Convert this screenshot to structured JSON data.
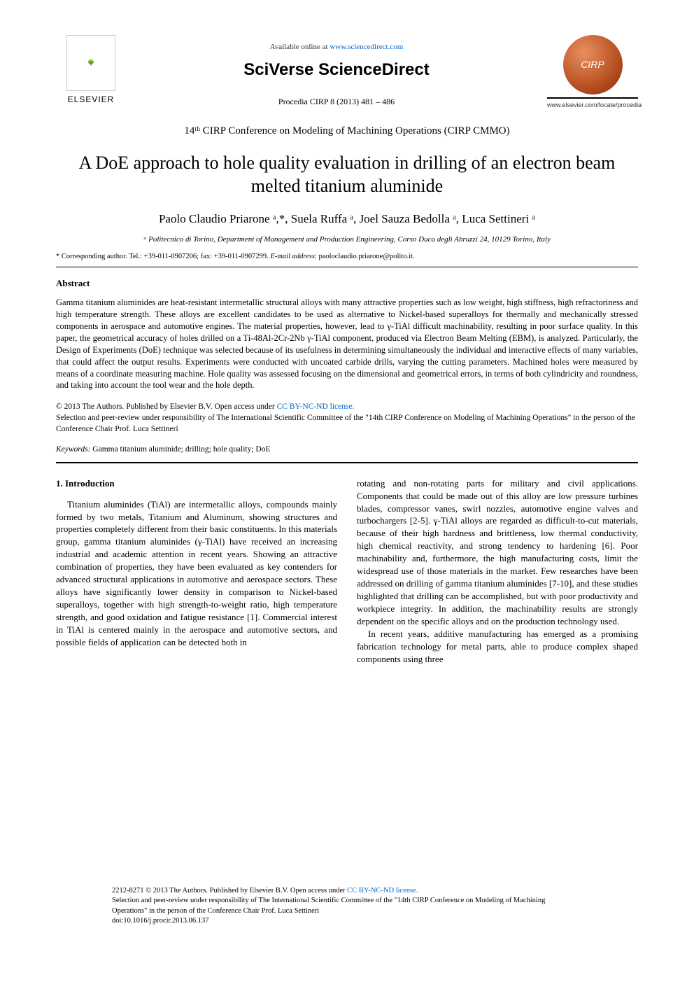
{
  "header": {
    "available_online": "Available online at ",
    "sciencedirect_url": "www.sciencedirect.com",
    "sciverse": "SciVerse ScienceDirect",
    "procedia": "Procedia CIRP 8 (2013) 481 – 486",
    "elsevier_label": "ELSEVIER",
    "cirp_label": "CIRP",
    "elsevier_url": "www.elsevier.com/locate/procedia"
  },
  "conference": "14ᵗʰ CIRP Conference on Modeling of Machining Operations (CIRP CMMO)",
  "title": "A DoE approach to hole quality evaluation in drilling of an electron beam melted titanium aluminide",
  "authors": "Paolo Claudio Priarone ᵃ,*, Suela Ruffa ᵃ, Joel Sauza Bedolla ᵃ, Luca Settineri ᵃ",
  "affiliation": "ᵃ Politecnico di Torino, Department of Management and Production Engineering, Corso Duca degli Abruzzi 24, 10129 Torino, Italy",
  "corresponding": {
    "prefix": "* Corresponding author. Tel.: +39-011-0907206; fax: +39-011-0907299. ",
    "email_label": "E-mail address",
    "email": ": paoloclaudio.priarone@polito.it."
  },
  "abstract": {
    "heading": "Abstract",
    "text": "Gamma titanium aluminides are heat-resistant intermetallic structural alloys with many attractive properties such as low weight, high stiffness, high refractoriness and high temperature strength. These alloys are excellent candidates to be used as alternative to Nickel-based superalloys for thermally and mechanically stressed components in aerospace and automotive engines. The material properties, however, lead to γ-TiAl difficult machinability, resulting in poor surface quality. In this paper, the geometrical accuracy of holes drilled on a Ti-48Al-2Cr-2Nb γ-TiAl component, produced via Electron Beam Melting (EBM), is analyzed. Particularly, the Design of Experiments (DoE) technique was selected because of its usefulness in determining simultaneously the individual and interactive effects of many variables, that could affect the output results. Experiments were conducted with uncoated carbide drills, varying the cutting parameters. Machined holes were measured by means of a coordinate measuring machine. Hole quality was assessed focusing on the dimensional and geometrical errors, in terms of both cylindricity and roundness, and taking into account the tool wear and the hole depth."
  },
  "copyright": {
    "line1": "© 2013 The Authors. Published by Elsevier B.V. ",
    "license_prefix": "Open access under ",
    "license_link": "CC BY-NC-ND license.",
    "line2": "Selection and peer-review under responsibility of The International Scientific Committee of the \"14th CIRP Conference on Modeling of Machining Operations\" in the person of the Conference Chair Prof. Luca Settineri"
  },
  "keywords": {
    "label": "Keywords:",
    "text": " Gamma titanium aluminide; drilling; hole quality; DoE"
  },
  "body": {
    "section_heading": "1. Introduction",
    "col1": "Titanium aluminides (TiAl) are intermetallic alloys, compounds mainly formed by two metals, Titanium and Aluminum, showing structures and properties completely different from their basic constituents. In this materials group, gamma titanium aluminides (γ-TiAl) have received an increasing industrial and academic attention in recent years. Showing an attractive combination of properties, they have been evaluated as key contenders for advanced structural applications in automotive and aerospace sectors. These alloys have significantly lower density in comparison to Nickel-based superalloys, together with high strength-to-weight ratio, high temperature strength, and good oxidation and fatigue resistance [1]. Commercial interest in TiAl is centered mainly in the aerospace and automotive sectors, and possible fields of application can be detected both in",
    "col2_p1": "rotating and non-rotating parts for military and civil applications. Components that could be made out of this alloy are low pressure turbines blades, compressor vanes, swirl nozzles, automotive engine valves and turbochargers [2-5]. γ-TiAl alloys are regarded as difficult-to-cut materials, because of their high hardness and brittleness, low thermal conductivity, high chemical reactivity, and strong tendency to hardening [6]. Poor machinability and, furthermore, the high manufacturing costs, limit the widespread use of those materials in the market. Few researches have been addressed on drilling of gamma titanium aluminides [7-10], and these studies highlighted that drilling can be accomplished, but with poor productivity and workpiece integrity. In addition, the machinability results are strongly dependent on the specific alloys and on the production technology used.",
    "col2_p2": "In recent years, additive manufacturing has emerged as a promising fabrication technology for metal parts, able to produce complex shaped components using three"
  },
  "footer": {
    "line1_prefix": "2212-8271 © 2013 The Authors. Published by Elsevier B.V. ",
    "license_prefix": "Open access under ",
    "license_link": "CC BY-NC-ND license.",
    "line2": "Selection and peer-review under responsibility of The International Scientific Committee of the \"14th CIRP Conference on Modeling of Machining Operations\" in the person of the Conference Chair Prof. Luca Settineri",
    "doi": "doi:10.1016/j.procir.2013.06.137"
  },
  "colors": {
    "link": "#0066cc",
    "text": "#000000",
    "background": "#ffffff"
  }
}
